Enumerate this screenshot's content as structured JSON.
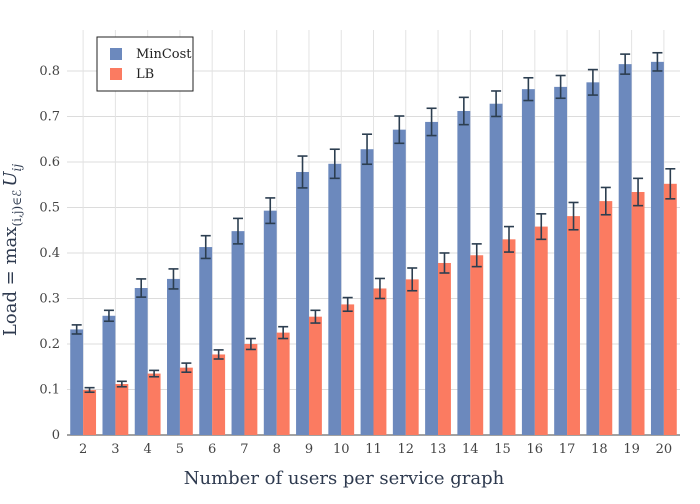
{
  "chart_data": {
    "type": "bar",
    "xlabel": "Number of users per service graph",
    "ylabel": "Load = max",
    "ylabel_subscript": "(i,j)∈ℰ",
    "ylabel_tail": "U",
    "ylabel_tail_subscript": "ij",
    "categories": [
      "2",
      "3",
      "4",
      "5",
      "6",
      "7",
      "8",
      "9",
      "10",
      "11",
      "12",
      "13",
      "14",
      "15",
      "16",
      "17",
      "18",
      "19",
      "20"
    ],
    "yticks": [
      "0",
      "0.1",
      "0.2",
      "0.3",
      "0.4",
      "0.5",
      "0.6",
      "0.7",
      "0.8"
    ],
    "ylim": [
      0,
      0.89
    ],
    "grid": true,
    "legend_position": "top-left",
    "colors": {
      "MinCost": "#6c89bd",
      "LB": "#fb7b61",
      "error_bar": "#2c3e50"
    },
    "series": [
      {
        "name": "MinCost",
        "values": [
          0.232,
          0.262,
          0.323,
          0.343,
          0.413,
          0.448,
          0.493,
          0.578,
          0.596,
          0.628,
          0.671,
          0.688,
          0.712,
          0.728,
          0.76,
          0.765,
          0.775,
          0.815,
          0.82
        ],
        "errors": [
          0.01,
          0.012,
          0.02,
          0.022,
          0.025,
          0.028,
          0.028,
          0.035,
          0.032,
          0.033,
          0.03,
          0.03,
          0.03,
          0.028,
          0.025,
          0.025,
          0.028,
          0.022,
          0.02
        ]
      },
      {
        "name": "LB",
        "values": [
          0.099,
          0.112,
          0.135,
          0.148,
          0.177,
          0.2,
          0.225,
          0.26,
          0.287,
          0.322,
          0.342,
          0.378,
          0.395,
          0.43,
          0.458,
          0.481,
          0.514,
          0.534,
          0.552
        ],
        "errors": [
          0.005,
          0.006,
          0.007,
          0.01,
          0.01,
          0.012,
          0.013,
          0.014,
          0.015,
          0.022,
          0.025,
          0.022,
          0.025,
          0.028,
          0.028,
          0.03,
          0.03,
          0.03,
          0.033
        ]
      }
    ]
  }
}
